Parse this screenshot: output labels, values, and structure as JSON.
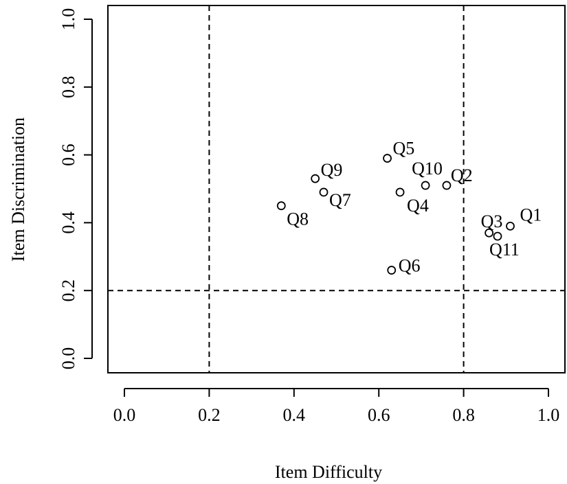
{
  "chart_data": {
    "type": "scatter",
    "title": "",
    "xlabel": "Item Difficulty",
    "ylabel": "Item Discrimination",
    "xlim": [
      0.0,
      1.0
    ],
    "ylim": [
      0.0,
      1.0
    ],
    "xticks": [
      "0.0",
      "0.2",
      "0.4",
      "0.6",
      "0.8",
      "1.0"
    ],
    "yticks": [
      "0.0",
      "0.2",
      "0.4",
      "0.6",
      "0.8",
      "1.0"
    ],
    "grid": false,
    "reference_lines": {
      "vertical": [
        0.2,
        0.8
      ],
      "horizontal": [
        0.2
      ]
    },
    "points": [
      {
        "label": "Q1",
        "x": 0.91,
        "y": 0.39
      },
      {
        "label": "Q2",
        "x": 0.76,
        "y": 0.51
      },
      {
        "label": "Q3",
        "x": 0.86,
        "y": 0.37
      },
      {
        "label": "Q4",
        "x": 0.65,
        "y": 0.49
      },
      {
        "label": "Q5",
        "x": 0.62,
        "y": 0.59
      },
      {
        "label": "Q6",
        "x": 0.63,
        "y": 0.26
      },
      {
        "label": "Q7",
        "x": 0.47,
        "y": 0.49
      },
      {
        "label": "Q8",
        "x": 0.37,
        "y": 0.45
      },
      {
        "label": "Q9",
        "x": 0.45,
        "y": 0.53
      },
      {
        "label": "Q10",
        "x": 0.71,
        "y": 0.51
      },
      {
        "label": "Q11",
        "x": 0.88,
        "y": 0.36
      }
    ]
  }
}
